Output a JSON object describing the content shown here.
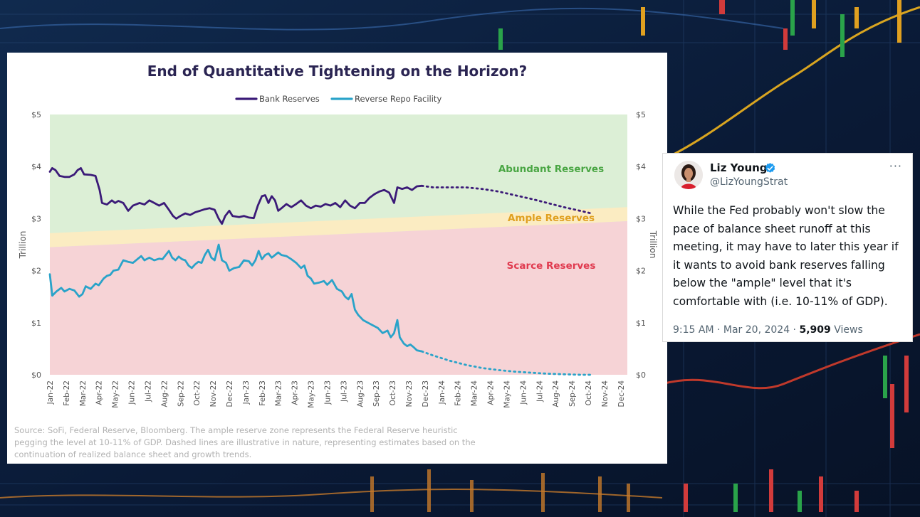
{
  "chart": {
    "title": "End of Quantitative Tightening on the Horizon?",
    "note": "Source: SoFi, Federal Reserve, Bloomberg. The ample reserve zone represents the Federal Reserve heuristic pegging the level at 10-11% of GDP. Dashed lines are illustrative in nature, representing estimates based on the continuation of realized balance sheet and growth trends.",
    "colors": {
      "bank_reserves": "#3b1a78",
      "reverse_repo": "#2aa3c9",
      "abundant": "#dcefd6",
      "ample": "#fbecc2",
      "scarce": "#f6d3d6",
      "abundant_text": "#4aa644",
      "ample_text": "#e0a020",
      "scarce_text": "#e0394e"
    }
  },
  "chart_data": {
    "type": "line",
    "legend": [
      "Bank Reserves",
      "Reverse Repo Facility"
    ],
    "legend_position": "top",
    "ylabel": "Trillion",
    "ylim": [
      0,
      5
    ],
    "yticks": [
      "$0",
      "$1",
      "$2",
      "$3",
      "$4",
      "$5"
    ],
    "categories": [
      "Jan-22",
      "Feb-22",
      "Mar-22",
      "Apr-22",
      "May-22",
      "Jun-22",
      "Jul-22",
      "Aug-22",
      "Sep-22",
      "Oct-22",
      "Nov-22",
      "Dec-22",
      "Jan-23",
      "Feb-23",
      "Mar-23",
      "Apr-23",
      "May-23",
      "Jun-23",
      "Jul-23",
      "Aug-23",
      "Sep-23",
      "Oct-23",
      "Nov-23",
      "Dec-23",
      "Jan-24",
      "Feb-24",
      "Mar-24",
      "Apr-24",
      "May-24",
      "Jun-24",
      "Jul-24",
      "Aug-24",
      "Sep-24",
      "Oct-24",
      "Nov-24",
      "Dec-24"
    ],
    "zones": [
      {
        "name": "Abundant Reserves",
        "from": "top",
        "to": "ample_upper",
        "max": 5
      },
      {
        "name": "Ample Reserves",
        "lower": [
          2.45,
          2.95
        ],
        "upper": [
          2.72,
          3.22
        ]
      },
      {
        "name": "Scarce Reserves",
        "from": 0,
        "to": "ample_lower"
      }
    ],
    "series": [
      {
        "name": "Bank Reserves",
        "actual": [
          [
            0,
            3.9
          ],
          [
            0.15,
            3.97
          ],
          [
            0.35,
            3.93
          ],
          [
            0.6,
            3.82
          ],
          [
            0.9,
            3.8
          ],
          [
            1.2,
            3.8
          ],
          [
            1.5,
            3.85
          ],
          [
            1.7,
            3.93
          ],
          [
            1.9,
            3.97
          ],
          [
            2.1,
            3.85
          ],
          [
            2.5,
            3.84
          ],
          [
            2.8,
            3.82
          ],
          [
            3.05,
            3.55
          ],
          [
            3.2,
            3.3
          ],
          [
            3.5,
            3.27
          ],
          [
            3.8,
            3.35
          ],
          [
            4.0,
            3.3
          ],
          [
            4.2,
            3.34
          ],
          [
            4.5,
            3.3
          ],
          [
            4.8,
            3.15
          ],
          [
            5.1,
            3.25
          ],
          [
            5.5,
            3.3
          ],
          [
            5.8,
            3.27
          ],
          [
            6.1,
            3.35
          ],
          [
            6.4,
            3.3
          ],
          [
            6.7,
            3.25
          ],
          [
            7.0,
            3.3
          ],
          [
            7.3,
            3.17
          ],
          [
            7.55,
            3.05
          ],
          [
            7.75,
            3.0
          ],
          [
            8.0,
            3.05
          ],
          [
            8.3,
            3.1
          ],
          [
            8.6,
            3.07
          ],
          [
            8.9,
            3.12
          ],
          [
            9.2,
            3.15
          ],
          [
            9.5,
            3.18
          ],
          [
            9.8,
            3.2
          ],
          [
            10.1,
            3.17
          ],
          [
            10.35,
            3.0
          ],
          [
            10.55,
            2.9
          ],
          [
            10.75,
            3.05
          ],
          [
            11.0,
            3.15
          ],
          [
            11.2,
            3.05
          ],
          [
            11.6,
            3.03
          ],
          [
            11.9,
            3.05
          ],
          [
            12.2,
            3.02
          ],
          [
            12.5,
            3.01
          ],
          [
            12.75,
            3.25
          ],
          [
            13.0,
            3.43
          ],
          [
            13.2,
            3.45
          ],
          [
            13.4,
            3.3
          ],
          [
            13.6,
            3.43
          ],
          [
            13.8,
            3.35
          ],
          [
            14.0,
            3.15
          ],
          [
            14.2,
            3.2
          ],
          [
            14.5,
            3.28
          ],
          [
            14.8,
            3.22
          ],
          [
            15.1,
            3.28
          ],
          [
            15.4,
            3.35
          ],
          [
            15.7,
            3.25
          ],
          [
            16.0,
            3.2
          ],
          [
            16.3,
            3.25
          ],
          [
            16.6,
            3.23
          ],
          [
            16.9,
            3.28
          ],
          [
            17.2,
            3.25
          ],
          [
            17.5,
            3.3
          ],
          [
            17.8,
            3.22
          ],
          [
            18.1,
            3.35
          ],
          [
            18.4,
            3.25
          ],
          [
            18.7,
            3.2
          ],
          [
            19.0,
            3.3
          ],
          [
            19.3,
            3.3
          ],
          [
            19.6,
            3.4
          ],
          [
            19.9,
            3.47
          ],
          [
            20.2,
            3.52
          ],
          [
            20.5,
            3.55
          ],
          [
            20.8,
            3.5
          ],
          [
            21.1,
            3.3
          ],
          [
            21.3,
            3.6
          ],
          [
            21.6,
            3.57
          ],
          [
            21.9,
            3.6
          ],
          [
            22.2,
            3.55
          ],
          [
            22.5,
            3.62
          ],
          [
            22.8,
            3.63
          ]
        ],
        "projection": [
          [
            22.8,
            3.63
          ],
          [
            23.5,
            3.6
          ],
          [
            24.5,
            3.6
          ],
          [
            25.5,
            3.6
          ],
          [
            26.5,
            3.57
          ],
          [
            27.5,
            3.52
          ],
          [
            28.5,
            3.45
          ],
          [
            29.5,
            3.38
          ],
          [
            30.5,
            3.3
          ],
          [
            31.5,
            3.22
          ],
          [
            32.5,
            3.15
          ],
          [
            33.2,
            3.1
          ]
        ]
      },
      {
        "name": "Reverse Repo Facility",
        "actual": [
          [
            0,
            1.93
          ],
          [
            0.15,
            1.52
          ],
          [
            0.4,
            1.6
          ],
          [
            0.7,
            1.67
          ],
          [
            0.9,
            1.6
          ],
          [
            1.2,
            1.65
          ],
          [
            1.5,
            1.62
          ],
          [
            1.8,
            1.5
          ],
          [
            2.0,
            1.55
          ],
          [
            2.2,
            1.7
          ],
          [
            2.5,
            1.65
          ],
          [
            2.8,
            1.75
          ],
          [
            3.0,
            1.72
          ],
          [
            3.3,
            1.85
          ],
          [
            3.5,
            1.9
          ],
          [
            3.7,
            1.92
          ],
          [
            3.9,
            2.0
          ],
          [
            4.2,
            2.02
          ],
          [
            4.5,
            2.2
          ],
          [
            4.8,
            2.17
          ],
          [
            5.1,
            2.15
          ],
          [
            5.4,
            2.23
          ],
          [
            5.6,
            2.28
          ],
          [
            5.8,
            2.2
          ],
          [
            6.1,
            2.25
          ],
          [
            6.4,
            2.2
          ],
          [
            6.7,
            2.23
          ],
          [
            6.9,
            2.22
          ],
          [
            7.1,
            2.3
          ],
          [
            7.3,
            2.38
          ],
          [
            7.5,
            2.25
          ],
          [
            7.7,
            2.2
          ],
          [
            7.9,
            2.27
          ],
          [
            8.1,
            2.22
          ],
          [
            8.3,
            2.2
          ],
          [
            8.5,
            2.1
          ],
          [
            8.7,
            2.05
          ],
          [
            8.9,
            2.12
          ],
          [
            9.1,
            2.17
          ],
          [
            9.3,
            2.15
          ],
          [
            9.5,
            2.3
          ],
          [
            9.7,
            2.4
          ],
          [
            9.9,
            2.25
          ],
          [
            10.1,
            2.2
          ],
          [
            10.35,
            2.5
          ],
          [
            10.55,
            2.2
          ],
          [
            10.8,
            2.15
          ],
          [
            11.0,
            2.0
          ],
          [
            11.3,
            2.05
          ],
          [
            11.6,
            2.07
          ],
          [
            11.9,
            2.2
          ],
          [
            12.2,
            2.18
          ],
          [
            12.4,
            2.1
          ],
          [
            12.6,
            2.2
          ],
          [
            12.8,
            2.38
          ],
          [
            13.0,
            2.22
          ],
          [
            13.2,
            2.3
          ],
          [
            13.4,
            2.33
          ],
          [
            13.6,
            2.25
          ],
          [
            13.8,
            2.3
          ],
          [
            14.0,
            2.35
          ],
          [
            14.2,
            2.3
          ],
          [
            14.5,
            2.28
          ],
          [
            14.8,
            2.22
          ],
          [
            15.1,
            2.15
          ],
          [
            15.4,
            2.05
          ],
          [
            15.6,
            2.1
          ],
          [
            15.8,
            1.9
          ],
          [
            16.0,
            1.85
          ],
          [
            16.2,
            1.75
          ],
          [
            16.5,
            1.77
          ],
          [
            16.8,
            1.8
          ],
          [
            17.0,
            1.73
          ],
          [
            17.3,
            1.82
          ],
          [
            17.6,
            1.65
          ],
          [
            17.9,
            1.6
          ],
          [
            18.1,
            1.5
          ],
          [
            18.3,
            1.45
          ],
          [
            18.5,
            1.55
          ],
          [
            18.7,
            1.25
          ],
          [
            18.9,
            1.15
          ],
          [
            19.2,
            1.05
          ],
          [
            19.5,
            1.0
          ],
          [
            19.8,
            0.95
          ],
          [
            20.1,
            0.9
          ],
          [
            20.4,
            0.8
          ],
          [
            20.7,
            0.85
          ],
          [
            20.9,
            0.72
          ],
          [
            21.1,
            0.8
          ],
          [
            21.3,
            1.05
          ],
          [
            21.45,
            0.72
          ],
          [
            21.7,
            0.6
          ],
          [
            21.9,
            0.55
          ],
          [
            22.1,
            0.58
          ],
          [
            22.3,
            0.53
          ],
          [
            22.5,
            0.47
          ],
          [
            22.8,
            0.45
          ]
        ],
        "projection": [
          [
            22.8,
            0.45
          ],
          [
            23.5,
            0.37
          ],
          [
            24.5,
            0.27
          ],
          [
            25.5,
            0.19
          ],
          [
            26.5,
            0.13
          ],
          [
            27.5,
            0.09
          ],
          [
            28.5,
            0.06
          ],
          [
            29.5,
            0.04
          ],
          [
            30.5,
            0.02
          ],
          [
            31.5,
            0.01
          ],
          [
            32.5,
            0.0
          ],
          [
            33.2,
            0.0
          ]
        ]
      }
    ]
  },
  "tweet": {
    "name": "Liz Young",
    "handle": "@LizYoungStrat",
    "text": "While the Fed probably won't slow the pace of balance sheet runoff at this meeting, it may have to later this year if it wants to avoid bank reserves falling below the \"ample\" level that it's comfortable with (i.e. 10-11% of GDP).",
    "time": "9:15 AM · Mar 20, 2024 · ",
    "views_count": "5,909",
    "views_label": " Views",
    "more": "···",
    "verified_icon": "verified-badge-icon",
    "accent_color": "#1d9bf0"
  }
}
